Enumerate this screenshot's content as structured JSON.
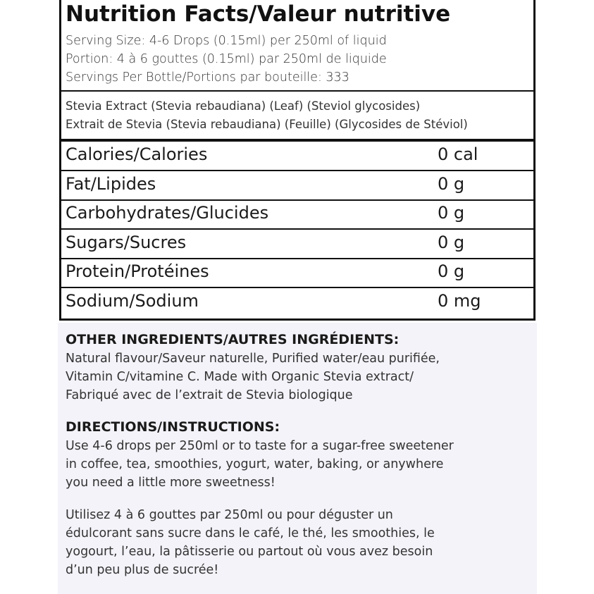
{
  "header": {
    "title": "Nutrition Facts/Valeur nutritive",
    "serving_lines": [
      "Serving Size: 4-6 Drops (0.15ml) per 250ml of liquid",
      "Portion: 4 à 6 gouttes (0.15ml) par 250ml de liquide",
      "Servings Per Bottle/Portions par bouteille: 333"
    ]
  },
  "ingredient_lines": [
    "Stevia Extract (Stevia rebaudiana) (Leaf) (Steviol glycosides)",
    "Extrait de Stevia (Stevia rebaudiana) (Feuille) (Glycosides de Stéviol)"
  ],
  "nutrients": [
    [
      "Calories/Calories",
      "0 cal"
    ],
    [
      "Fat/Lipides",
      "0 g"
    ],
    [
      "Carbohydrates/Glucides",
      "0 g"
    ],
    [
      "Sugars/Sucres",
      "0 g"
    ],
    [
      "Protein/Protéines",
      "0 g"
    ],
    [
      "Sodium/Sodium",
      "0 mg"
    ]
  ],
  "other_ingredients": {
    "heading": "OTHER INGREDIENTS/AUTRES INGRÉDIENTS:",
    "lines": [
      "Natural flavour/Saveur naturelle, Purified water/eau purifiée,",
      "Vitamin C/vitamine C. Made with Organic Stevia extract/",
      "Fabriqué avec de l’extrait de Stevia biologique"
    ]
  },
  "directions": {
    "heading": "DIRECTIONS/INSTRUCTIONS:",
    "paragraphs": [
      [
        "Use 4-6 drops per 250ml or to taste for a sugar-free sweetener",
        "in coffee, tea, smoothies, yogurt, water, baking, or anywhere",
        "you need a little more sweetness!"
      ],
      [
        "Utilisez 4 à 6 gouttes par 250ml ou pour déguster un",
        "édulcorant sans sucre dans le café, le thé, les smoothies, le",
        "yogourt, l’eau, la pâtisserie ou partout où vous avez besoin",
        "d’un peu plus de sucrée!"
      ]
    ]
  }
}
